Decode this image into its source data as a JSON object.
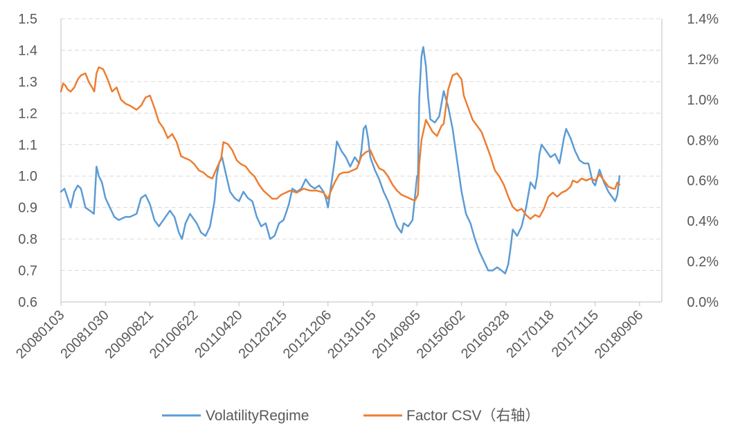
{
  "chart_data": {
    "type": "line",
    "title": "",
    "x_categories": [
      "20080103",
      "20081030",
      "20090821",
      "20100622",
      "20110420",
      "20120215",
      "20121206",
      "20131015",
      "20140805",
      "20150602",
      "20160328",
      "20170118",
      "20171115",
      "20180906"
    ],
    "left_axis": {
      "ylim": [
        0.6,
        1.5
      ],
      "ticks": [
        "0.6",
        "0.7",
        "0.8",
        "0.9",
        "1.0",
        "1.1",
        "1.2",
        "1.3",
        "1.4",
        "1.5"
      ]
    },
    "right_axis": {
      "ylim": [
        0.0,
        1.4
      ],
      "unit": "%",
      "ticks": [
        "0.0%",
        "0.2%",
        "0.4%",
        "0.6%",
        "0.8%",
        "1.0%",
        "1.2%",
        "1.4%"
      ]
    },
    "grid": "horizontal-dashed",
    "legend_position": "bottom",
    "series": [
      {
        "name": "VolatilityRegime",
        "axis": "left",
        "color": "#5B9BD5",
        "points": [
          [
            0.0,
            0.95
          ],
          [
            0.08,
            0.96
          ],
          [
            0.15,
            0.93
          ],
          [
            0.22,
            0.9
          ],
          [
            0.3,
            0.95
          ],
          [
            0.38,
            0.97
          ],
          [
            0.45,
            0.96
          ],
          [
            0.55,
            0.9
          ],
          [
            0.65,
            0.89
          ],
          [
            0.74,
            0.88
          ],
          [
            0.8,
            1.03
          ],
          [
            0.85,
            1.0
          ],
          [
            0.92,
            0.98
          ],
          [
            1.0,
            0.93
          ],
          [
            1.1,
            0.9
          ],
          [
            1.2,
            0.87
          ],
          [
            1.3,
            0.86
          ],
          [
            1.45,
            0.87
          ],
          [
            1.55,
            0.87
          ],
          [
            1.7,
            0.88
          ],
          [
            1.8,
            0.93
          ],
          [
            1.9,
            0.94
          ],
          [
            2.0,
            0.91
          ],
          [
            2.1,
            0.86
          ],
          [
            2.2,
            0.84
          ],
          [
            2.3,
            0.86
          ],
          [
            2.45,
            0.89
          ],
          [
            2.55,
            0.87
          ],
          [
            2.65,
            0.82
          ],
          [
            2.72,
            0.8
          ],
          [
            2.8,
            0.85
          ],
          [
            2.9,
            0.88
          ],
          [
            3.05,
            0.85
          ],
          [
            3.15,
            0.82
          ],
          [
            3.25,
            0.81
          ],
          [
            3.35,
            0.84
          ],
          [
            3.45,
            0.92
          ],
          [
            3.5,
            1.0
          ],
          [
            3.55,
            1.04
          ],
          [
            3.62,
            1.06
          ],
          [
            3.7,
            1.01
          ],
          [
            3.8,
            0.95
          ],
          [
            3.9,
            0.93
          ],
          [
            4.0,
            0.92
          ],
          [
            4.1,
            0.95
          ],
          [
            4.2,
            0.93
          ],
          [
            4.3,
            0.92
          ],
          [
            4.4,
            0.87
          ],
          [
            4.5,
            0.84
          ],
          [
            4.6,
            0.85
          ],
          [
            4.7,
            0.8
          ],
          [
            4.8,
            0.81
          ],
          [
            4.9,
            0.85
          ],
          [
            5.0,
            0.86
          ],
          [
            5.05,
            0.88
          ],
          [
            5.12,
            0.91
          ],
          [
            5.2,
            0.96
          ],
          [
            5.3,
            0.95
          ],
          [
            5.4,
            0.96
          ],
          [
            5.5,
            0.99
          ],
          [
            5.6,
            0.97
          ],
          [
            5.7,
            0.96
          ],
          [
            5.8,
            0.97
          ],
          [
            5.9,
            0.95
          ],
          [
            5.95,
            0.93
          ],
          [
            6.0,
            0.9
          ],
          [
            6.05,
            0.95
          ],
          [
            6.1,
            1.0
          ],
          [
            6.15,
            1.05
          ],
          [
            6.2,
            1.11
          ],
          [
            6.3,
            1.08
          ],
          [
            6.4,
            1.06
          ],
          [
            6.5,
            1.03
          ],
          [
            6.6,
            1.06
          ],
          [
            6.7,
            1.04
          ],
          [
            6.75,
            1.08
          ],
          [
            6.8,
            1.15
          ],
          [
            6.85,
            1.16
          ],
          [
            6.9,
            1.12
          ],
          [
            6.95,
            1.06
          ],
          [
            7.05,
            1.02
          ],
          [
            7.15,
            0.99
          ],
          [
            7.25,
            0.95
          ],
          [
            7.35,
            0.92
          ],
          [
            7.45,
            0.88
          ],
          [
            7.55,
            0.84
          ],
          [
            7.65,
            0.82
          ],
          [
            7.7,
            0.85
          ],
          [
            7.8,
            0.84
          ],
          [
            7.9,
            0.86
          ],
          [
            7.95,
            0.93
          ],
          [
            8.0,
            1.0
          ],
          [
            8.02,
            1.0
          ],
          [
            8.05,
            1.25
          ],
          [
            8.1,
            1.38
          ],
          [
            8.14,
            1.41
          ],
          [
            8.2,
            1.35
          ],
          [
            8.25,
            1.25
          ],
          [
            8.3,
            1.18
          ],
          [
            8.4,
            1.17
          ],
          [
            8.5,
            1.19
          ],
          [
            8.55,
            1.23
          ],
          [
            8.6,
            1.27
          ],
          [
            8.7,
            1.22
          ],
          [
            8.8,
            1.15
          ],
          [
            8.9,
            1.05
          ],
          [
            9.0,
            0.95
          ],
          [
            9.1,
            0.88
          ],
          [
            9.2,
            0.85
          ],
          [
            9.3,
            0.8
          ],
          [
            9.4,
            0.76
          ],
          [
            9.5,
            0.73
          ],
          [
            9.6,
            0.7
          ],
          [
            9.7,
            0.7
          ],
          [
            9.8,
            0.71
          ],
          [
            9.9,
            0.7
          ],
          [
            9.98,
            0.69
          ],
          [
            10.05,
            0.72
          ],
          [
            10.1,
            0.77
          ],
          [
            10.15,
            0.83
          ],
          [
            10.25,
            0.81
          ],
          [
            10.35,
            0.84
          ],
          [
            10.45,
            0.9
          ],
          [
            10.55,
            0.98
          ],
          [
            10.65,
            0.96
          ],
          [
            10.7,
            1.0
          ],
          [
            10.75,
            1.07
          ],
          [
            10.8,
            1.1
          ],
          [
            10.9,
            1.08
          ],
          [
            11.0,
            1.06
          ],
          [
            11.1,
            1.07
          ],
          [
            11.2,
            1.04
          ],
          [
            11.25,
            1.08
          ],
          [
            11.3,
            1.12
          ],
          [
            11.35,
            1.15
          ],
          [
            11.45,
            1.12
          ],
          [
            11.55,
            1.08
          ],
          [
            11.65,
            1.05
          ],
          [
            11.75,
            1.04
          ],
          [
            11.85,
            1.04
          ],
          [
            11.95,
            0.98
          ],
          [
            12.0,
            0.97
          ],
          [
            12.1,
            1.02
          ],
          [
            12.2,
            0.98
          ],
          [
            12.3,
            0.95
          ],
          [
            12.4,
            0.93
          ],
          [
            12.45,
            0.92
          ],
          [
            12.5,
            0.94
          ],
          [
            12.55,
            1.0
          ]
        ]
      },
      {
        "name": "Factor CSV（右轴）",
        "axis": "right",
        "color": "#ED7D31",
        "points": [
          [
            0.0,
            1.04
          ],
          [
            0.05,
            1.08
          ],
          [
            0.1,
            1.07
          ],
          [
            0.15,
            1.05
          ],
          [
            0.22,
            1.04
          ],
          [
            0.3,
            1.06
          ],
          [
            0.38,
            1.1
          ],
          [
            0.45,
            1.12
          ],
          [
            0.55,
            1.13
          ],
          [
            0.62,
            1.09
          ],
          [
            0.7,
            1.06
          ],
          [
            0.75,
            1.04
          ],
          [
            0.8,
            1.13
          ],
          [
            0.85,
            1.16
          ],
          [
            0.95,
            1.15
          ],
          [
            1.05,
            1.1
          ],
          [
            1.15,
            1.04
          ],
          [
            1.25,
            1.06
          ],
          [
            1.35,
            1.0
          ],
          [
            1.45,
            0.98
          ],
          [
            1.55,
            0.97
          ],
          [
            1.7,
            0.95
          ],
          [
            1.8,
            0.97
          ],
          [
            1.9,
            1.01
          ],
          [
            2.0,
            1.02
          ],
          [
            2.1,
            0.96
          ],
          [
            2.2,
            0.89
          ],
          [
            2.3,
            0.86
          ],
          [
            2.4,
            0.81
          ],
          [
            2.5,
            0.83
          ],
          [
            2.6,
            0.79
          ],
          [
            2.7,
            0.72
          ],
          [
            2.8,
            0.71
          ],
          [
            2.9,
            0.7
          ],
          [
            3.0,
            0.68
          ],
          [
            3.1,
            0.65
          ],
          [
            3.2,
            0.64
          ],
          [
            3.3,
            0.62
          ],
          [
            3.4,
            0.61
          ],
          [
            3.5,
            0.66
          ],
          [
            3.6,
            0.71
          ],
          [
            3.65,
            0.79
          ],
          [
            3.75,
            0.78
          ],
          [
            3.85,
            0.75
          ],
          [
            3.95,
            0.7
          ],
          [
            4.05,
            0.68
          ],
          [
            4.15,
            0.67
          ],
          [
            4.25,
            0.64
          ],
          [
            4.35,
            0.62
          ],
          [
            4.45,
            0.58
          ],
          [
            4.55,
            0.55
          ],
          [
            4.65,
            0.53
          ],
          [
            4.75,
            0.51
          ],
          [
            4.85,
            0.51
          ],
          [
            4.95,
            0.53
          ],
          [
            5.05,
            0.54
          ],
          [
            5.15,
            0.55
          ],
          [
            5.3,
            0.54
          ],
          [
            5.45,
            0.56
          ],
          [
            5.6,
            0.55
          ],
          [
            5.75,
            0.55
          ],
          [
            5.9,
            0.54
          ],
          [
            6.0,
            0.51
          ],
          [
            6.05,
            0.54
          ],
          [
            6.15,
            0.59
          ],
          [
            6.25,
            0.63
          ],
          [
            6.35,
            0.64
          ],
          [
            6.45,
            0.64
          ],
          [
            6.55,
            0.65
          ],
          [
            6.65,
            0.66
          ],
          [
            6.75,
            0.72
          ],
          [
            6.85,
            0.74
          ],
          [
            6.95,
            0.75
          ],
          [
            7.05,
            0.7
          ],
          [
            7.15,
            0.66
          ],
          [
            7.25,
            0.65
          ],
          [
            7.35,
            0.62
          ],
          [
            7.45,
            0.58
          ],
          [
            7.55,
            0.55
          ],
          [
            7.65,
            0.53
          ],
          [
            7.75,
            0.52
          ],
          [
            7.85,
            0.51
          ],
          [
            7.95,
            0.5
          ],
          [
            8.02,
            0.53
          ],
          [
            8.05,
            0.68
          ],
          [
            8.1,
            0.8
          ],
          [
            8.2,
            0.9
          ],
          [
            8.25,
            0.88
          ],
          [
            8.35,
            0.84
          ],
          [
            8.45,
            0.82
          ],
          [
            8.55,
            0.87
          ],
          [
            8.6,
            0.88
          ],
          [
            8.7,
            1.05
          ],
          [
            8.8,
            1.12
          ],
          [
            8.9,
            1.13
          ],
          [
            9.0,
            1.1
          ],
          [
            9.05,
            1.02
          ],
          [
            9.15,
            0.96
          ],
          [
            9.25,
            0.9
          ],
          [
            9.35,
            0.87
          ],
          [
            9.45,
            0.84
          ],
          [
            9.55,
            0.78
          ],
          [
            9.65,
            0.72
          ],
          [
            9.75,
            0.65
          ],
          [
            9.85,
            0.62
          ],
          [
            9.95,
            0.58
          ],
          [
            10.05,
            0.52
          ],
          [
            10.15,
            0.47
          ],
          [
            10.25,
            0.45
          ],
          [
            10.35,
            0.46
          ],
          [
            10.45,
            0.43
          ],
          [
            10.55,
            0.41
          ],
          [
            10.65,
            0.43
          ],
          [
            10.75,
            0.42
          ],
          [
            10.85,
            0.46
          ],
          [
            10.95,
            0.52
          ],
          [
            11.05,
            0.54
          ],
          [
            11.15,
            0.52
          ],
          [
            11.25,
            0.54
          ],
          [
            11.35,
            0.55
          ],
          [
            11.45,
            0.57
          ],
          [
            11.5,
            0.6
          ],
          [
            11.6,
            0.59
          ],
          [
            11.7,
            0.61
          ],
          [
            11.8,
            0.6
          ],
          [
            11.9,
            0.61
          ],
          [
            12.0,
            0.6
          ],
          [
            12.1,
            0.63
          ],
          [
            12.2,
            0.6
          ],
          [
            12.3,
            0.57
          ],
          [
            12.4,
            0.56
          ],
          [
            12.45,
            0.56
          ],
          [
            12.5,
            0.59
          ],
          [
            12.55,
            0.58
          ]
        ]
      }
    ]
  }
}
